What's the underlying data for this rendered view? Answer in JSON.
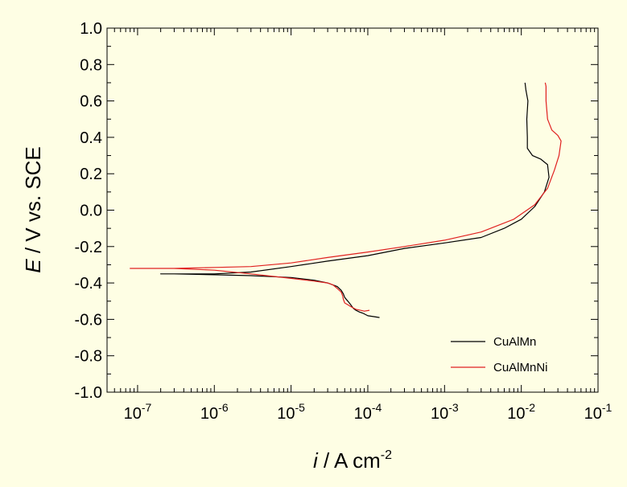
{
  "chart_data": {
    "type": "line",
    "x_scale": "log",
    "xlim": [
      4e-08,
      0.1
    ],
    "ylim": [
      -1.0,
      1.0
    ],
    "y_ticks": [
      "1.0",
      "0.8",
      "0.6",
      "0.4",
      "0.2",
      "0.0",
      "-0.2",
      "-0.4",
      "-0.6",
      "-0.8",
      "-1.0"
    ],
    "x_ticks": [
      {
        "value": 1e-07,
        "base": "10",
        "exp": "-7"
      },
      {
        "value": 1e-06,
        "base": "10",
        "exp": "-6"
      },
      {
        "value": 1e-05,
        "base": "10",
        "exp": "-5"
      },
      {
        "value": 0.0001,
        "base": "10",
        "exp": "-4"
      },
      {
        "value": 0.001,
        "base": "10",
        "exp": "-3"
      },
      {
        "value": 0.01,
        "base": "10",
        "exp": "-2"
      },
      {
        "value": 0.1,
        "base": "10",
        "exp": "-1"
      }
    ],
    "ylabel": {
      "var": "E",
      "rest": " / V vs. SCE"
    },
    "xlabel": {
      "var": "i",
      "rest": " / A cm",
      "sup": "-2"
    },
    "legend_position": "bottom-right",
    "grid": false,
    "series": [
      {
        "name": "CuAlMn",
        "color": "#000000",
        "points": [
          [
            0.000142,
            -0.59
          ],
          [
            0.00012,
            -0.585
          ],
          [
            0.0001,
            -0.58
          ],
          [
            9e-05,
            -0.57
          ],
          [
            8.5e-05,
            -0.565
          ],
          [
            7.8e-05,
            -0.56
          ],
          [
            7e-05,
            -0.55
          ],
          [
            6.5e-05,
            -0.54
          ],
          [
            6e-05,
            -0.52
          ],
          [
            5.5e-05,
            -0.5
          ],
          [
            5e-05,
            -0.48
          ],
          [
            4.8e-05,
            -0.46
          ],
          [
            4.5e-05,
            -0.44
          ],
          [
            4e-05,
            -0.42
          ],
          [
            3e-05,
            -0.4
          ],
          [
            2e-05,
            -0.385
          ],
          [
            1e-05,
            -0.37
          ],
          [
            3e-06,
            -0.36
          ],
          [
            1e-06,
            -0.355
          ],
          [
            3e-07,
            -0.35
          ],
          [
            2e-07,
            -0.35
          ],
          [
            3e-07,
            -0.35
          ],
          [
            1e-06,
            -0.35
          ],
          [
            3e-06,
            -0.34
          ],
          [
            1e-05,
            -0.31
          ],
          [
            3e-05,
            -0.28
          ],
          [
            0.0001,
            -0.25
          ],
          [
            0.0003,
            -0.21
          ],
          [
            0.001,
            -0.18
          ],
          [
            0.003,
            -0.15
          ],
          [
            0.006,
            -0.1
          ],
          [
            0.01,
            -0.05
          ],
          [
            0.015,
            0.02
          ],
          [
            0.02,
            0.1
          ],
          [
            0.023,
            0.18
          ],
          [
            0.022,
            0.25
          ],
          [
            0.018,
            0.28
          ],
          [
            0.014,
            0.3
          ],
          [
            0.012,
            0.34
          ],
          [
            0.012,
            0.4
          ],
          [
            0.0118,
            0.5
          ],
          [
            0.0122,
            0.6
          ],
          [
            0.0115,
            0.66
          ],
          [
            0.0112,
            0.7
          ]
        ]
      },
      {
        "name": "CuAlMnNi",
        "color": "#e02020",
        "points": [
          [
            0.000105,
            -0.55
          ],
          [
            9e-05,
            -0.555
          ],
          [
            8e-05,
            -0.55
          ],
          [
            7e-05,
            -0.545
          ],
          [
            6e-05,
            -0.53
          ],
          [
            5.5e-05,
            -0.52
          ],
          [
            5e-05,
            -0.51
          ],
          [
            4.8e-05,
            -0.49
          ],
          [
            4.7e-05,
            -0.47
          ],
          [
            4.5e-05,
            -0.45
          ],
          [
            4e-05,
            -0.43
          ],
          [
            3.5e-05,
            -0.41
          ],
          [
            3e-05,
            -0.4
          ],
          [
            2e-05,
            -0.39
          ],
          [
            1e-05,
            -0.375
          ],
          [
            3e-06,
            -0.35
          ],
          [
            1e-06,
            -0.33
          ],
          [
            3e-07,
            -0.32
          ],
          [
            8e-08,
            -0.32
          ],
          [
            3e-07,
            -0.32
          ],
          [
            1e-06,
            -0.315
          ],
          [
            3e-06,
            -0.31
          ],
          [
            1e-05,
            -0.29
          ],
          [
            3e-05,
            -0.26
          ],
          [
            0.0001,
            -0.23
          ],
          [
            0.0003,
            -0.2
          ],
          [
            0.001,
            -0.165
          ],
          [
            0.003,
            -0.12
          ],
          [
            0.008,
            -0.05
          ],
          [
            0.015,
            0.03
          ],
          [
            0.022,
            0.12
          ],
          [
            0.027,
            0.22
          ],
          [
            0.031,
            0.3
          ],
          [
            0.033,
            0.38
          ],
          [
            0.03,
            0.41
          ],
          [
            0.025,
            0.44
          ],
          [
            0.022,
            0.5
          ],
          [
            0.021,
            0.6
          ],
          [
            0.021,
            0.68
          ],
          [
            0.0205,
            0.7
          ]
        ]
      }
    ]
  }
}
